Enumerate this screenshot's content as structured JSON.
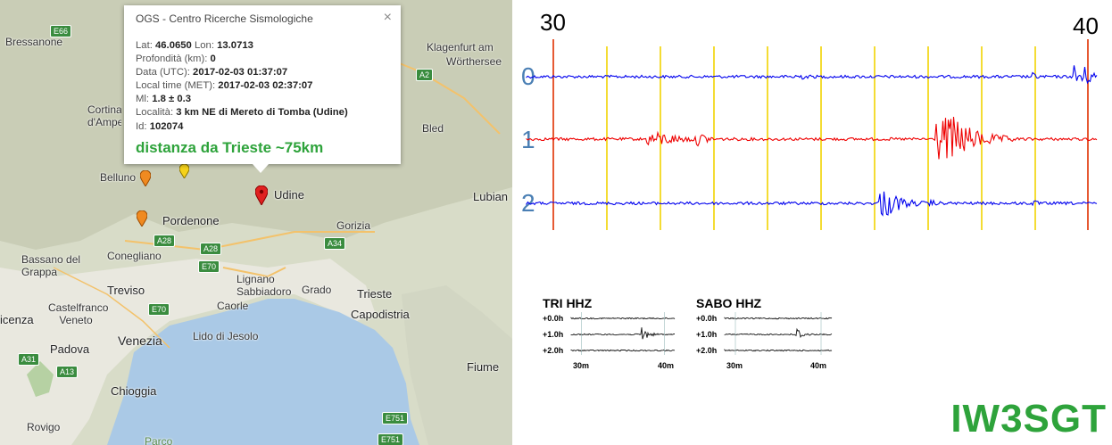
{
  "map": {
    "places": [
      {
        "id": "bressanone",
        "text": "Bressanone"
      },
      {
        "id": "klagenfurt",
        "text": "Klagenfurt am"
      },
      {
        "id": "worthersee",
        "text": "Wörthersee"
      },
      {
        "id": "cortina",
        "text": "Cortina d'Ampezzo"
      },
      {
        "id": "bled",
        "text": "Bled"
      },
      {
        "id": "belluno",
        "text": "Belluno"
      },
      {
        "id": "udine",
        "text": "Udine"
      },
      {
        "id": "ljubljana",
        "text": "Lubian"
      },
      {
        "id": "pordenone",
        "text": "Pordenone"
      },
      {
        "id": "gorizia",
        "text": "Gorizia"
      },
      {
        "id": "bassano",
        "text": "Bassano del Grappa"
      },
      {
        "id": "conegliano",
        "text": "Conegliano"
      },
      {
        "id": "treviso",
        "text": "Treviso"
      },
      {
        "id": "lignano",
        "text": "Lignano Sabbiadoro"
      },
      {
        "id": "grado",
        "text": "Grado"
      },
      {
        "id": "trieste",
        "text": "Trieste"
      },
      {
        "id": "castelfranco",
        "text": "Castelfranco Veneto"
      },
      {
        "id": "caorle",
        "text": "Caorle"
      },
      {
        "id": "capodistria",
        "text": "Capodistria"
      },
      {
        "id": "vicenza",
        "text": "icenza"
      },
      {
        "id": "venezia",
        "text": "Venezia"
      },
      {
        "id": "lido",
        "text": "Lido di Jesolo"
      },
      {
        "id": "padova",
        "text": "Padova"
      },
      {
        "id": "fiume",
        "text": "Fiume"
      },
      {
        "id": "chioggia",
        "text": "Chioggia"
      },
      {
        "id": "rovigo",
        "text": "Rovigo"
      },
      {
        "id": "parco",
        "text": "Parco"
      }
    ],
    "shields": [
      "E66",
      "A2",
      "A28",
      "A28",
      "A34",
      "E70",
      "E70",
      "A31",
      "A13",
      "E751",
      "E751"
    ]
  },
  "popup": {
    "title": "OGS - Centro Ricerche Sismologiche",
    "close": "×",
    "rows": [
      {
        "label": "Lat: ",
        "value": "46.0650",
        "label2": " Lon: ",
        "value2": "13.0713"
      },
      {
        "label": "Profondità (km): ",
        "value": "0"
      },
      {
        "label": "Data (UTC): ",
        "value": "2017-02-03 01:37:07"
      },
      {
        "label": "Local time (MET): ",
        "value": "2017-02-03 02:37:07"
      },
      {
        "label": "Ml: ",
        "value": "1.8 ± 0.3"
      },
      {
        "label": "Località: ",
        "value": "3 km NE di Mereto di Tomba (Udine)"
      },
      {
        "label": "Id: ",
        "value": "102074"
      }
    ],
    "distance": "distanza da Trieste ~75km"
  },
  "seismogram": {
    "tick_start": "30",
    "tick_end": "40",
    "channels": [
      {
        "label": "0",
        "color": "#0000ee"
      },
      {
        "label": "1",
        "color": "#ee0000"
      },
      {
        "label": "2",
        "color": "#0000ee"
      }
    ],
    "marker_color": "#f2d400",
    "end_marker_color": "#e03000"
  },
  "mini_plots": [
    {
      "title": "TRI HHZ",
      "rows": [
        "+0.0h",
        "+1.0h",
        "+2.0h"
      ],
      "x_start": "30m",
      "x_end": "40m"
    },
    {
      "title": "SABO HHZ",
      "rows": [
        "+0.0h",
        "+1.0h",
        "+2.0h"
      ],
      "x_start": "30m",
      "x_end": "40m"
    }
  ],
  "callsign": "IW3SGT"
}
